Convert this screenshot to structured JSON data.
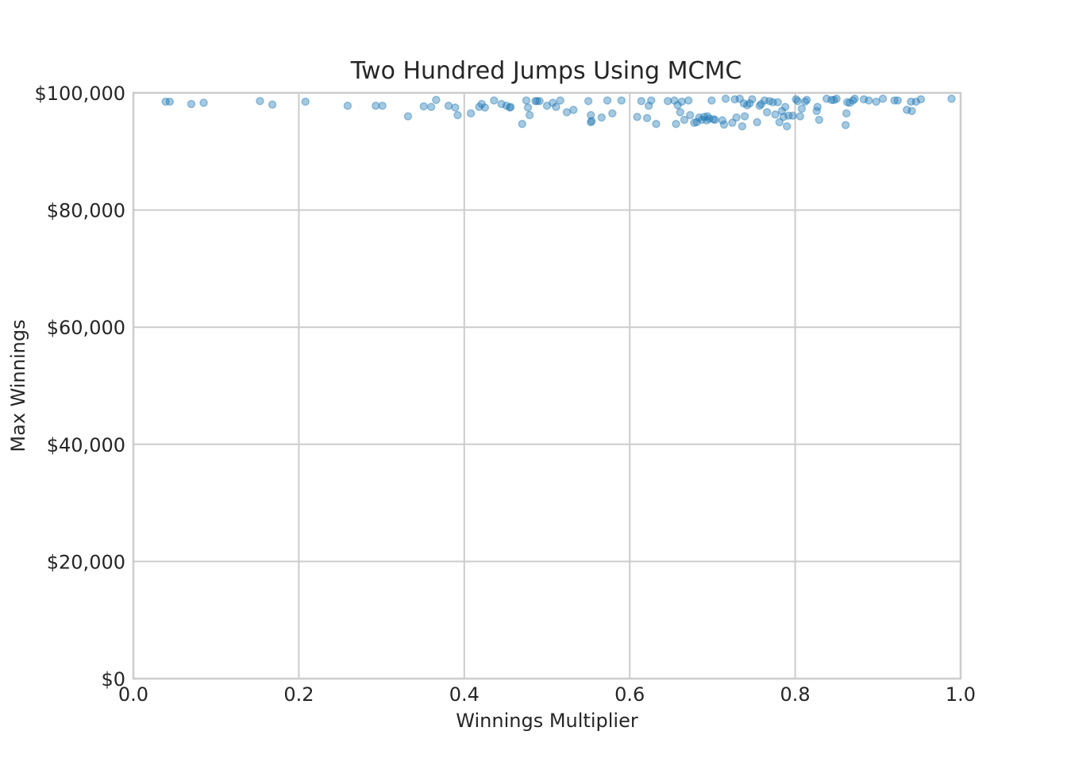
{
  "chart_data": {
    "type": "scatter",
    "title": "Two Hundred Jumps Using MCMC",
    "xlabel": "Winnings Multiplier",
    "ylabel": "Max Winnings",
    "xlim": [
      0.0,
      1.0
    ],
    "ylim": [
      0,
      100000
    ],
    "grid": true,
    "x_ticks": [
      {
        "value": 0.0,
        "label": "0.0"
      },
      {
        "value": 0.2,
        "label": "0.2"
      },
      {
        "value": 0.4,
        "label": "0.4"
      },
      {
        "value": 0.6,
        "label": "0.6"
      },
      {
        "value": 0.8,
        "label": "0.8"
      },
      {
        "value": 1.0,
        "label": "1.0"
      }
    ],
    "y_ticks": [
      {
        "value": 0,
        "label": "$0"
      },
      {
        "value": 20000,
        "label": "$20,000"
      },
      {
        "value": 40000,
        "label": "$40,000"
      },
      {
        "value": 60000,
        "label": "$60,000"
      },
      {
        "value": 80000,
        "label": "$80,000"
      },
      {
        "value": 100000,
        "label": "$100,000"
      }
    ],
    "point_color": "#1f77b4",
    "point_opacity": 0.4,
    "x": [
      0.039,
      0.044,
      0.07,
      0.085,
      0.153,
      0.168,
      0.208,
      0.259,
      0.293,
      0.301,
      0.332,
      0.351,
      0.36,
      0.366,
      0.381,
      0.389,
      0.392,
      0.408,
      0.418,
      0.421,
      0.425,
      0.436,
      0.445,
      0.451,
      0.455,
      0.456,
      0.47,
      0.475,
      0.477,
      0.479,
      0.486,
      0.488,
      0.491,
      0.5,
      0.507,
      0.511,
      0.516,
      0.524,
      0.532,
      0.55,
      0.553,
      0.553,
      0.554,
      0.566,
      0.573,
      0.579,
      0.59,
      0.609,
      0.614,
      0.621,
      0.623,
      0.626,
      0.632,
      0.646,
      0.654,
      0.656,
      0.658,
      0.661,
      0.663,
      0.666,
      0.671,
      0.673,
      0.678,
      0.681,
      0.684,
      0.687,
      0.69,
      0.693,
      0.694,
      0.696,
      0.699,
      0.701,
      0.703,
      0.712,
      0.714,
      0.716,
      0.724,
      0.727,
      0.729,
      0.733,
      0.736,
      0.738,
      0.739,
      0.742,
      0.745,
      0.748,
      0.754,
      0.757,
      0.759,
      0.763,
      0.766,
      0.769,
      0.773,
      0.776,
      0.779,
      0.781,
      0.784,
      0.786,
      0.788,
      0.79,
      0.792,
      0.797,
      0.801,
      0.803,
      0.806,
      0.808,
      0.812,
      0.814,
      0.826,
      0.827,
      0.829,
      0.838,
      0.844,
      0.847,
      0.85,
      0.861,
      0.862,
      0.863,
      0.866,
      0.87,
      0.872,
      0.883,
      0.889,
      0.898,
      0.906,
      0.92,
      0.924,
      0.935,
      0.94,
      0.941,
      0.946,
      0.952,
      0.989
    ],
    "y": [
      98500,
      98500,
      98100,
      98300,
      98600,
      98000,
      98500,
      97800,
      97800,
      97800,
      96000,
      97700,
      97600,
      98800,
      97800,
      97500,
      96200,
      96500,
      97600,
      98100,
      97500,
      98700,
      98100,
      97800,
      97500,
      97600,
      94700,
      98700,
      97500,
      96200,
      98600,
      98600,
      98600,
      97800,
      98300,
      97600,
      98700,
      96700,
      97100,
      98600,
      96200,
      95000,
      95200,
      95800,
      98700,
      96500,
      98700,
      95900,
      98600,
      95700,
      97800,
      98700,
      94700,
      98600,
      98700,
      94700,
      97900,
      96700,
      98500,
      95400,
      98700,
      96200,
      94900,
      95000,
      95800,
      95400,
      95900,
      95300,
      96000,
      95600,
      98700,
      95500,
      95400,
      95300,
      94600,
      99000,
      94900,
      98900,
      95800,
      99000,
      94300,
      98200,
      96000,
      97900,
      98200,
      98900,
      95000,
      97800,
      98100,
      98700,
      96700,
      98600,
      98400,
      96300,
      98400,
      95000,
      96900,
      95900,
      97600,
      94300,
      96100,
      96100,
      98900,
      98600,
      96000,
      97300,
      98500,
      98800,
      96900,
      97600,
      95400,
      99000,
      98800,
      98800,
      99000,
      94500,
      96500,
      98400,
      98300,
      98700,
      99000,
      98900,
      98700,
      98500,
      99000,
      98700,
      98700,
      97100,
      98500,
      96900,
      98500,
      98900,
      99000
    ]
  }
}
